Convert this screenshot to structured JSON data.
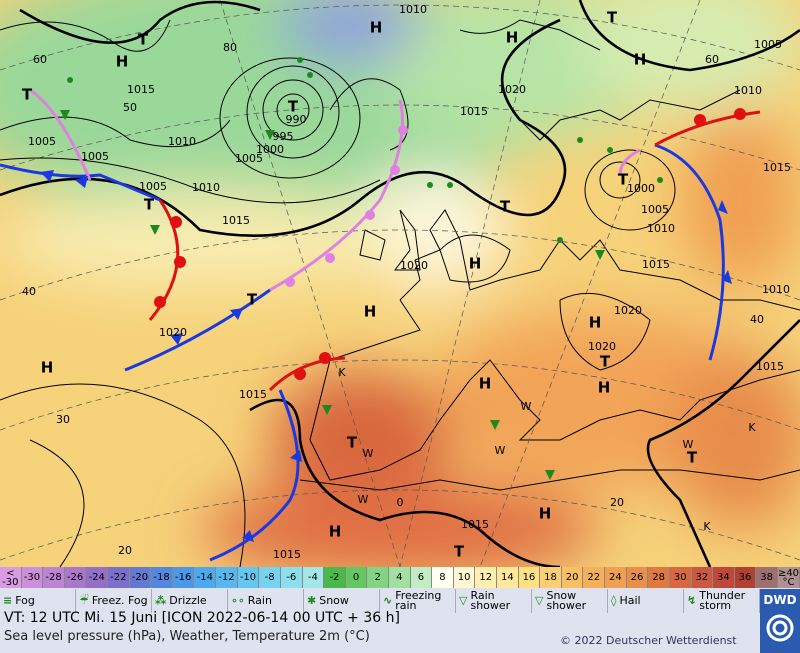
{
  "map_labels": [
    "H",
    "1010",
    "H",
    "T",
    "H",
    "1005",
    "60",
    "60",
    "T",
    "H",
    "1015",
    "50",
    "80",
    "990",
    "T",
    "995",
    "1000",
    "1005",
    "1010",
    "1015",
    "1020",
    "1010",
    "T",
    "1005",
    "1005",
    "1005",
    "1010",
    "T",
    "1015",
    "40",
    "1020",
    "T",
    "H",
    "H",
    "1020",
    "T",
    "T",
    "1000",
    "1005",
    "1010",
    "1015",
    "1015",
    "1010",
    "40",
    "1015",
    "1020",
    "H",
    "1020",
    "T",
    "H",
    "H",
    "H",
    "30",
    "1015",
    "T",
    "W",
    "K",
    "W",
    "0",
    "W",
    "W",
    "W",
    "T",
    "K",
    "H",
    "H",
    "1015",
    "T",
    "1015",
    "20",
    "20",
    "K"
  ],
  "temperature_scale": [
    {
      "label": "< -30",
      "color": "#d99be2"
    },
    {
      "label": "-30",
      "color": "#cc8fdc"
    },
    {
      "label": "-28",
      "color": "#bd84d4"
    },
    {
      "label": "-26",
      "color": "#a977cc"
    },
    {
      "label": "-24",
      "color": "#936fc8"
    },
    {
      "label": "-22",
      "color": "#7a6fca"
    },
    {
      "label": "-20",
      "color": "#6479d2"
    },
    {
      "label": "-18",
      "color": "#5388de"
    },
    {
      "label": "-16",
      "color": "#4c98e8"
    },
    {
      "label": "-14",
      "color": "#4ca8ef"
    },
    {
      "label": "-12",
      "color": "#55b8f1"
    },
    {
      "label": "-10",
      "color": "#64c7f1"
    },
    {
      "label": "-8",
      "color": "#75d3f0"
    },
    {
      "label": "-6",
      "color": "#8cdfef"
    },
    {
      "label": "-4",
      "color": "#a3e8e6"
    },
    {
      "label": "-2",
      "color": "#4bb84b"
    },
    {
      "label": "0",
      "color": "#62c862"
    },
    {
      "label": "2",
      "color": "#82d482"
    },
    {
      "label": "4",
      "color": "#a2e0a2"
    },
    {
      "label": "6",
      "color": "#c2ecc2"
    },
    {
      "label": "8",
      "color": "#fffff2"
    },
    {
      "label": "10",
      "color": "#fff8d2"
    },
    {
      "label": "12",
      "color": "#fff0b2"
    },
    {
      "label": "14",
      "color": "#ffe89a"
    },
    {
      "label": "16",
      "color": "#ffe082"
    },
    {
      "label": "18",
      "color": "#fcd072"
    },
    {
      "label": "20",
      "color": "#f8c062"
    },
    {
      "label": "22",
      "color": "#f4b05a"
    },
    {
      "label": "24",
      "color": "#f0a052"
    },
    {
      "label": "26",
      "color": "#e8904a"
    },
    {
      "label": "28",
      "color": "#e07842"
    },
    {
      "label": "30",
      "color": "#d86842"
    },
    {
      "label": "32",
      "color": "#cc5842"
    },
    {
      "label": "34",
      "color": "#c0483a"
    },
    {
      "label": "36",
      "color": "#b04032"
    },
    {
      "label": "38",
      "color": "#a07070"
    },
    {
      "label": "≥40 °C",
      "color": "#b09090"
    }
  ],
  "weather_legend": [
    "Fog",
    "Freez. Fog",
    "Drizzle",
    "Rain",
    "Snow",
    "Freezing rain",
    "Rain shower",
    "Snow shower",
    "Hail",
    "Thunder storm"
  ],
  "footer": {
    "valid_time": "VT: 12 UTC Mi.   15 Juni [ICON 2022-06-14  00 UTC + 36 h]",
    "description": "Sea level pressure (hPa), Weather, Temperature 2m (°C)",
    "copyright": "© 2022 Deutscher Wetterdienst",
    "logo": "DWD"
  }
}
